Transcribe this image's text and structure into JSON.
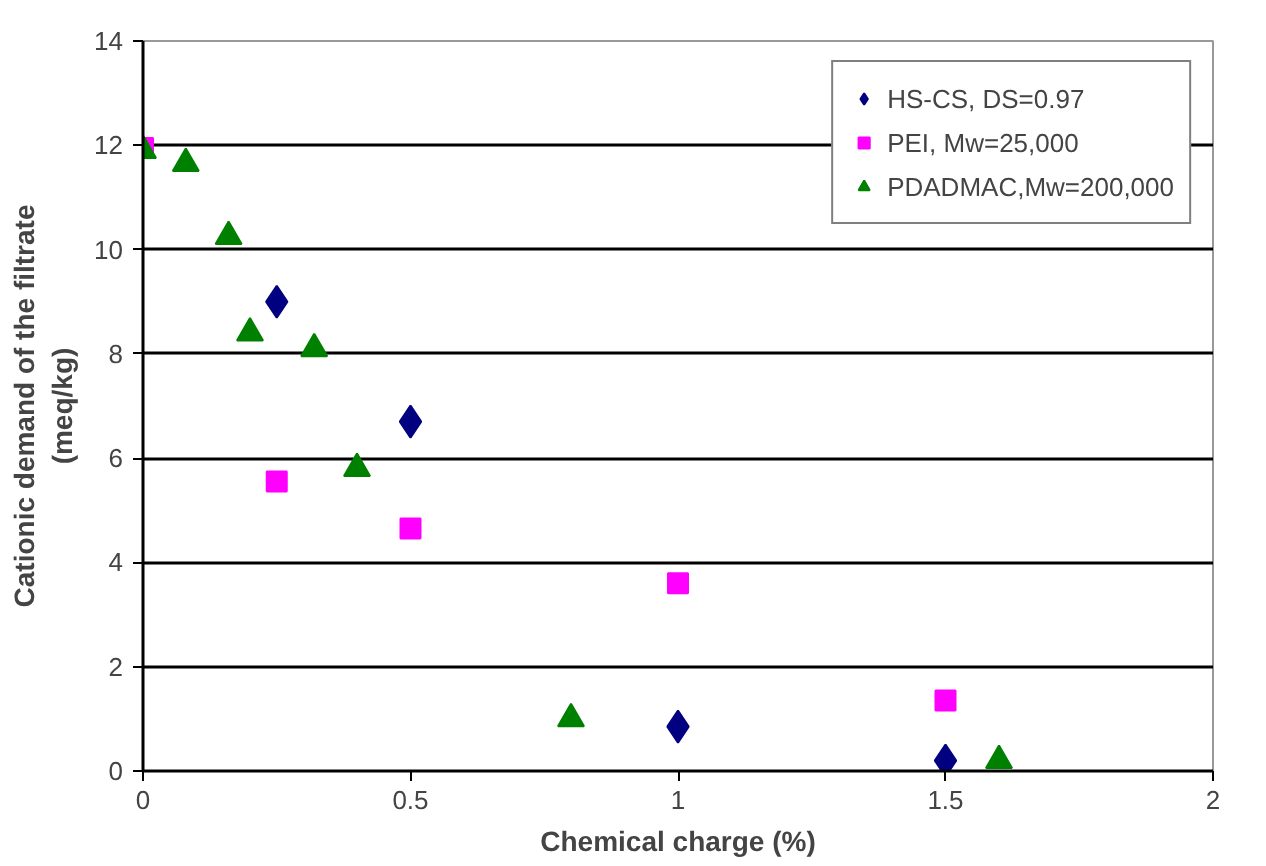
{
  "chart_data": {
    "type": "scatter",
    "xlabel": "Chemical charge (%)",
    "ylabel": "Cationic demand of the filtrate\n(meq/kg)",
    "xlim": [
      0,
      2
    ],
    "xticks": [
      0,
      0.5,
      1,
      1.5,
      2
    ],
    "ylim": [
      0,
      14
    ],
    "yticks": [
      0,
      2,
      4,
      6,
      8,
      10,
      12,
      14
    ],
    "grid": "y",
    "legend": "top right",
    "series": [
      {
        "name": "HS-CS, DS=0.97",
        "color": "#000080",
        "marker": "diamond",
        "x": [
          0.25,
          0.5,
          1.0,
          1.5
        ],
        "values": [
          9.0,
          6.7,
          0.85,
          0.2
        ]
      },
      {
        "name": "PEI, Mw=25,000",
        "color": "#ff00ff",
        "marker": "square",
        "x": [
          0,
          0.25,
          0.5,
          1.0,
          1.5
        ],
        "values": [
          11.95,
          5.55,
          4.65,
          3.6,
          1.35
        ]
      },
      {
        "name": "PDADMAC,Mw=200,000",
        "color": "#008000",
        "marker": "triangle",
        "x": [
          0,
          0.08,
          0.16,
          0.2,
          0.32,
          0.4,
          0.8,
          1.6
        ],
        "values": [
          11.9,
          11.65,
          10.25,
          8.4,
          8.1,
          5.8,
          1.0,
          0.2
        ]
      }
    ]
  }
}
